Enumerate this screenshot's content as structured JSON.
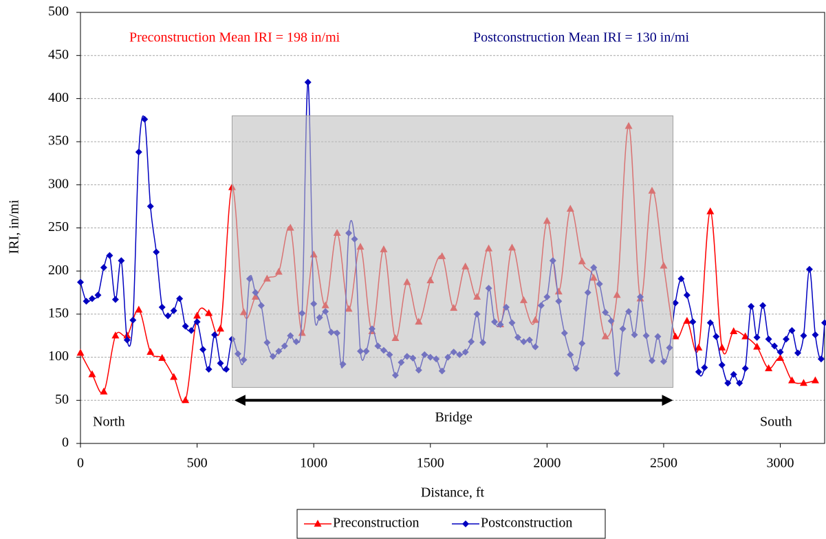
{
  "chart_data": {
    "type": "line",
    "xlabel": "Distance, ft",
    "ylabel": "IRI, in/mi",
    "xlim": [
      0,
      3190
    ],
    "ylim": [
      0,
      500
    ],
    "xticks": [
      0,
      500,
      1000,
      1500,
      2000,
      2500,
      3000
    ],
    "yticks": [
      0,
      50,
      100,
      150,
      200,
      250,
      300,
      350,
      400,
      450,
      500
    ],
    "grid": true,
    "legend": "bottom",
    "annotations": {
      "pre_mean": "Preconstruction Mean IRI = 198 in/mi",
      "post_mean": "Postconstruction Mean IRI = 130 in/mi",
      "north": "North",
      "south": "South",
      "bridge": {
        "text": "Bridge",
        "x": [
          660,
          2540
        ],
        "y": 50
      },
      "shade": {
        "x": [
          650,
          2540
        ],
        "y": [
          65,
          380
        ]
      }
    },
    "series": [
      {
        "name": "Preconstruction",
        "color": "#ff0000",
        "marker": "triangle",
        "x": [
          0,
          50,
          100,
          150,
          200,
          250,
          300,
          350,
          400,
          450,
          500,
          550,
          600,
          650,
          700,
          750,
          800,
          850,
          900,
          950,
          1000,
          1050,
          1100,
          1150,
          1200,
          1250,
          1300,
          1350,
          1400,
          1450,
          1500,
          1550,
          1600,
          1650,
          1700,
          1750,
          1800,
          1850,
          1900,
          1950,
          2000,
          2050,
          2100,
          2150,
          2200,
          2250,
          2300,
          2350,
          2400,
          2450,
          2500,
          2550,
          2600,
          2650,
          2700,
          2750,
          2800,
          2850,
          2900,
          2950,
          3000,
          3050,
          3100,
          3150
        ],
        "values": [
          105,
          80,
          60,
          125,
          125,
          155,
          106,
          99,
          77,
          50,
          148,
          151,
          133,
          297,
          152,
          170,
          191,
          199,
          250,
          128,
          219,
          160,
          244,
          156,
          228,
          130,
          225,
          122,
          187,
          141,
          189,
          217,
          157,
          205,
          170,
          226,
          138,
          227,
          166,
          143,
          258,
          176,
          272,
          211,
          192,
          124,
          172,
          368,
          168,
          293,
          206,
          124,
          142,
          111,
          269,
          111,
          130,
          124,
          112,
          87,
          99,
          73,
          70,
          73
        ]
      },
      {
        "name": "Postconstruction",
        "color": "#0000c0",
        "marker": "diamond",
        "x": [
          0,
          25,
          50,
          75,
          100,
          125,
          150,
          175,
          200,
          225,
          250,
          275,
          300,
          325,
          350,
          375,
          400,
          425,
          450,
          475,
          500,
          525,
          550,
          575,
          600,
          625,
          650,
          675,
          700,
          725,
          750,
          775,
          800,
          825,
          850,
          875,
          900,
          925,
          950,
          975,
          1000,
          1025,
          1050,
          1075,
          1100,
          1125,
          1150,
          1175,
          1200,
          1225,
          1250,
          1275,
          1300,
          1325,
          1350,
          1375,
          1400,
          1425,
          1450,
          1475,
          1500,
          1525,
          1550,
          1575,
          1600,
          1625,
          1650,
          1675,
          1700,
          1725,
          1750,
          1775,
          1800,
          1825,
          1850,
          1875,
          1900,
          1925,
          1950,
          1975,
          2000,
          2025,
          2050,
          2075,
          2100,
          2125,
          2150,
          2175,
          2200,
          2225,
          2250,
          2275,
          2300,
          2325,
          2350,
          2375,
          2400,
          2425,
          2450,
          2475,
          2500,
          2525,
          2550,
          2575,
          2600,
          2625,
          2650,
          2675,
          2700,
          2725,
          2750,
          2775,
          2800,
          2825,
          2850,
          2875,
          2900,
          2925,
          2950,
          2975,
          3000,
          3025,
          3050,
          3075,
          3100,
          3125,
          3150,
          3175,
          3190
        ],
        "values": [
          187,
          165,
          168,
          172,
          204,
          218,
          167,
          212,
          120,
          143,
          338,
          376,
          275,
          222,
          158,
          148,
          154,
          168,
          136,
          131,
          141,
          109,
          86,
          126,
          93,
          86,
          121,
          104,
          97,
          191,
          175,
          160,
          117,
          101,
          107,
          113,
          125,
          118,
          151,
          419,
          162,
          146,
          153,
          129,
          128,
          92,
          244,
          237,
          107,
          107,
          133,
          113,
          108,
          103,
          79,
          94,
          101,
          99,
          85,
          103,
          100,
          98,
          84,
          100,
          106,
          103,
          106,
          118,
          150,
          117,
          180,
          141,
          138,
          158,
          140,
          123,
          118,
          120,
          112,
          160,
          170,
          212,
          165,
          128,
          103,
          87,
          116,
          175,
          204,
          185,
          152,
          142,
          81,
          133,
          153,
          126,
          170,
          125,
          96,
          124,
          95,
          111,
          163,
          191,
          172,
          141,
          83,
          88,
          140,
          124,
          91,
          70,
          80,
          70,
          87,
          159,
          123,
          160,
          121,
          113,
          106,
          121,
          131,
          105,
          125,
          202,
          126,
          98,
          140
        ]
      }
    ]
  }
}
